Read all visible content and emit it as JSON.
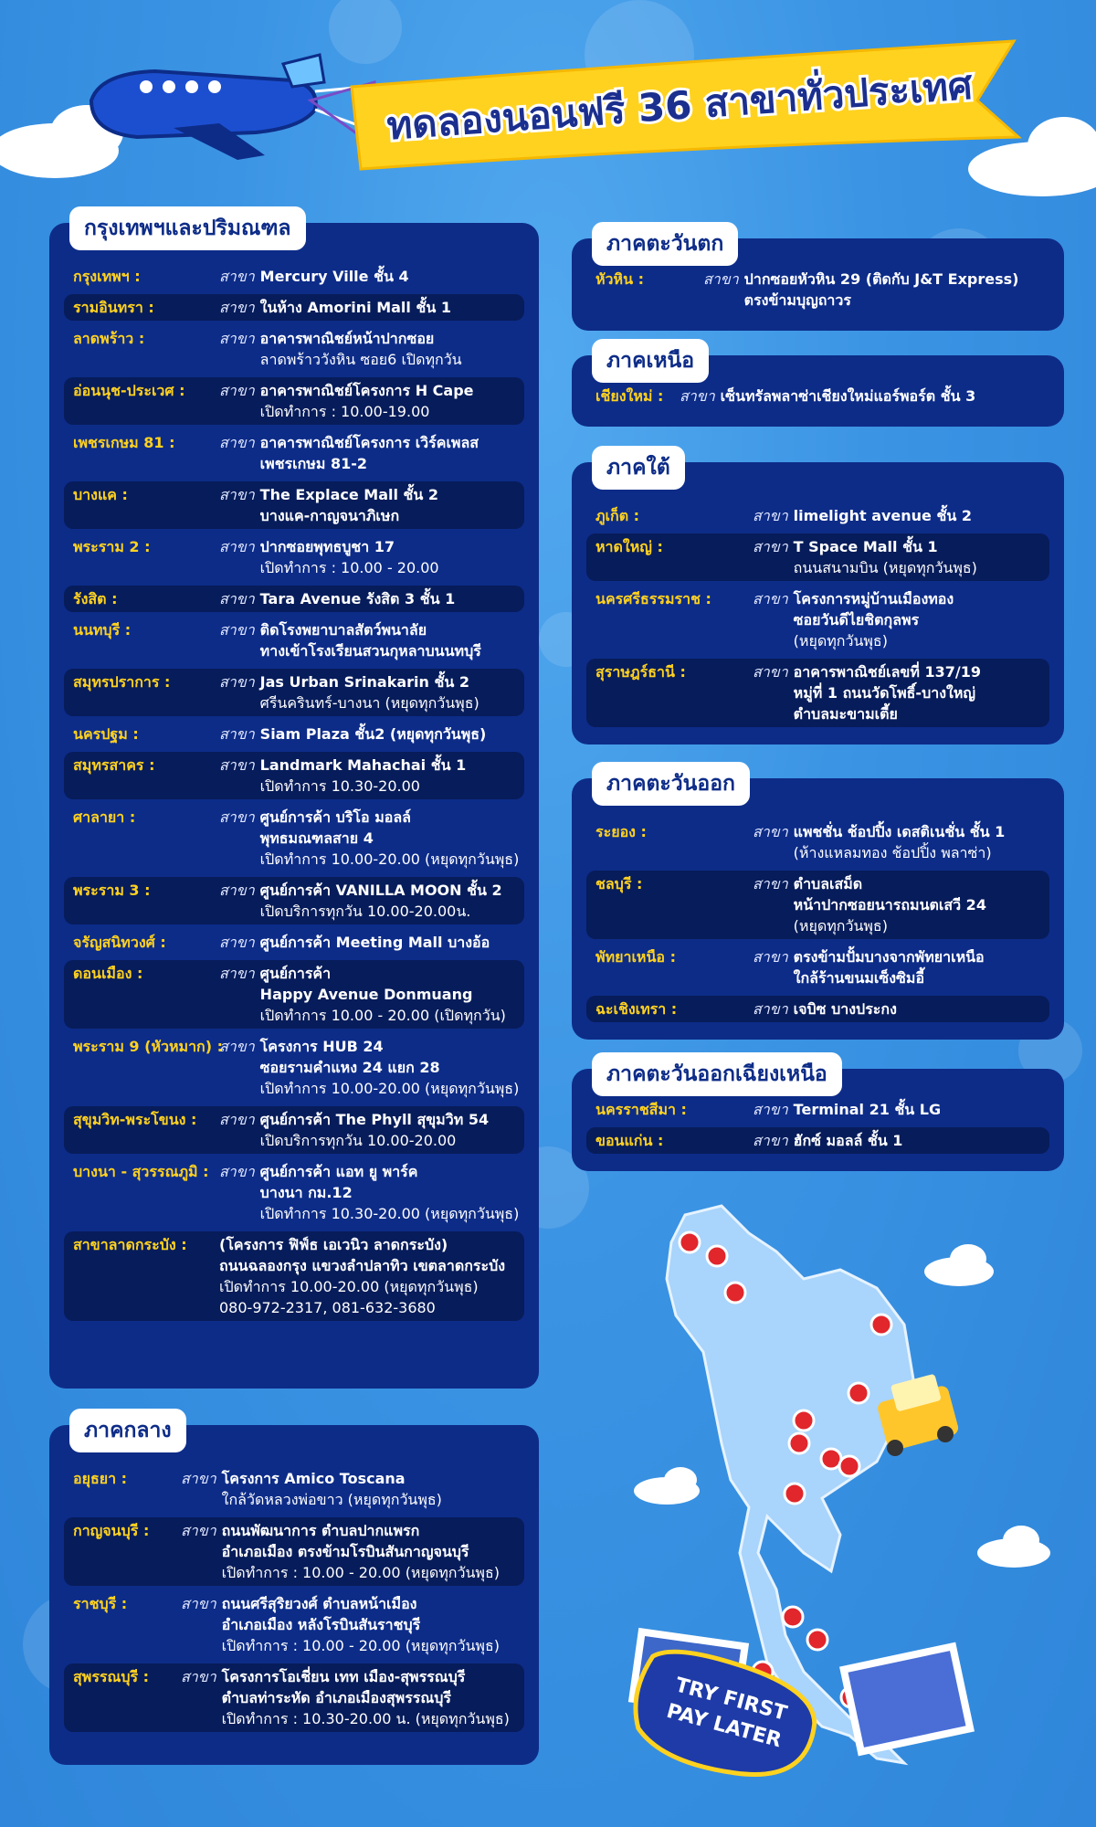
{
  "header": {
    "title": "ทดลองนอนฟรี 36 สาขาทั่วประเทศ"
  },
  "sections": [
    {
      "title": "กรุงเทพฯและปริมณฑล",
      "entries": [
        {
          "place": "กรุงเทพฯ :",
          "prefix": "สาขา",
          "lines": [
            "Mercury Ville ชั้น 4"
          ]
        },
        {
          "place": "รามอินทรา :",
          "prefix": "สาขา",
          "lines": [
            "ในห้าง Amorini Mall ชั้น 1"
          ]
        },
        {
          "place": "ลาดพร้าว :",
          "prefix": "สาขา",
          "lines": [
            "อาคารพาณิชย์หน้าปากซอย",
            "ลาดพร้าววังหิน ซอย6 เปิดทุกวัน"
          ]
        },
        {
          "place": "อ่อนนุช-ประเวศ :",
          "prefix": "สาขา",
          "lines": [
            "อาคารพาณิชย์โครงการ H Cape",
            "เปิดทำการ : 10.00-19.00"
          ]
        },
        {
          "place": "เพชรเกษม 81 :",
          "prefix": "สาขา",
          "lines": [
            "อาคารพาณิชย์โครงการ เวิร์คเพลส",
            "เพชรเกษม 81-2"
          ]
        },
        {
          "place": "บางแค :",
          "prefix": "สาขา",
          "lines": [
            "The Explace Mall ชั้น 2",
            "บางแค-กาญจนาภิเษก"
          ]
        },
        {
          "place": "พระราม 2 :",
          "prefix": "สาขา",
          "lines": [
            "ปากซอยพุทธบูชา 17",
            "เปิดทำการ : 10.00 - 20.00"
          ]
        },
        {
          "place": "รังสิต :",
          "prefix": "สาขา",
          "lines": [
            "Tara Avenue รังสิต 3 ชั้น 1"
          ]
        },
        {
          "place": "นนทบุรี :",
          "prefix": "สาขา",
          "lines": [
            "ติดโรงพยาบาลสัตว์พนาลัย",
            "ทางเข้าโรงเรียนสวนกุหลาบนนทบุรี"
          ]
        },
        {
          "place": "สมุทรปราการ :",
          "prefix": "สาขา",
          "lines": [
            "Jas Urban Srinakarin ชั้น 2",
            "ศรีนครินทร์-บางนา (หยุดทุกวันพุธ)"
          ]
        },
        {
          "place": "นครปฐม :",
          "prefix": "สาขา",
          "lines": [
            "Siam Plaza ชั้น2 (หยุดทุกวันพุธ)"
          ]
        },
        {
          "place": "สมุทรสาคร :",
          "prefix": "สาขา",
          "lines": [
            "Landmark Mahachai ชั้น 1",
            "เปิดทำการ 10.30-20.00"
          ]
        },
        {
          "place": "ศาลายา :",
          "prefix": "สาขา",
          "lines": [
            "ศูนย์การค้า บริโอ มอลล์",
            "พุทธมณฑลสาย 4",
            "เปิดทำการ 10.00-20.00 (หยุดทุกวันพุธ)"
          ]
        },
        {
          "place": "พระราม 3 :",
          "prefix": "สาขา",
          "lines": [
            "ศูนย์การค้า VANILLA MOON ชั้น 2",
            "เปิดบริการทุกวัน 10.00-20.00น."
          ]
        },
        {
          "place": "จรัญสนิทวงศ์ :",
          "prefix": "สาขา",
          "lines": [
            "ศูนย์การค้า Meeting Mall บางอ้อ"
          ]
        },
        {
          "place": "ดอนเมือง :",
          "prefix": "สาขา",
          "lines": [
            "ศูนย์การค้า",
            "Happy Avenue Donmuang",
            "เปิดทำการ 10.00 - 20.00 (เปิดทุกวัน)"
          ]
        },
        {
          "place": "พระราม 9 (หัวหมาก) :",
          "prefix": "สาขา",
          "lines": [
            "โครงการ HUB 24",
            "ซอยรามคำแหง 24 แยก 28",
            "เปิดทำการ 10.00-20.00 (หยุดทุกวันพุธ)"
          ]
        },
        {
          "place": "สุขุมวิท-พระโขนง :",
          "prefix": "สาขา",
          "lines": [
            "ศูนย์การค้า The Phyll สุขุมวิท 54",
            "เปิดบริการทุกวัน 10.00-20.00"
          ]
        },
        {
          "place": "บางนา - สุวรรณภูมิ :",
          "prefix": "สาขา",
          "lines": [
            "ศูนย์การค้า แอท ยู พาร์ค",
            "บางนา กม.12",
            "เปิดทำการ 10.30-20.00 (หยุดทุกวันพุธ)"
          ]
        },
        {
          "place": "สาขาลาดกระบัง :",
          "lines": [
            "(โครงการ ฟิฟ์ธ เอเวนิว ลาดกระบัง)",
            "ถนนฉลองกรุง แขวงลำปลาทิว เขตลาดกระบัง",
            "เปิดทำการ 10.00-20.00 (หยุดทุกวันพุธ)",
            "080-972-2317, 081-632-3680"
          ]
        }
      ]
    },
    {
      "title": "ภาคกลาง",
      "entries": [
        {
          "place": "อยุธยา :",
          "prefix": "สาขา",
          "lines": [
            "โครงการ Amico Toscana",
            "ใกล้วัดหลวงพ่อขาว (หยุดทุกวันพุธ)"
          ]
        },
        {
          "place": "กาญจนบุรี :",
          "prefix": "สาขา",
          "lines": [
            "ถนนพัฒนาการ ตำบลปากแพรก",
            "อำเภอเมือง ตรงข้ามโรบินสันกาญจนบุรี",
            "เปิดทำการ : 10.00 - 20.00 (หยุดทุกวันพุธ)"
          ]
        },
        {
          "place": "ราชบุรี :",
          "prefix": "สาขา",
          "lines": [
            "ถนนศรีสุริยวงศ์ ตำบลหน้าเมือง",
            "อำเภอเมือง หลังโรบินสันราชบุรี",
            "เปิดทำการ : 10.00 - 20.00 (หยุดทุกวันพุธ)"
          ]
        },
        {
          "place": "สุพรรณบุรี :",
          "prefix": "สาขา",
          "lines": [
            "โครงการโอเชี่ยน เทท เมือง-สุพรรณบุรี",
            "ตำบลท่าระหัด อำเภอเมืองสุพรรณบุรี",
            "เปิดทำการ : 10.30-20.00 น. (หยุดทุกวันพุธ)"
          ]
        }
      ]
    },
    {
      "title": "ภาคตะวันตก",
      "entries": [
        {
          "place": "หัวหิน :",
          "prefix": "สาขา",
          "lines": [
            "ปากซอยหัวหิน 29 (ติดกับ J&T Express)",
            "ตรงข้ามบุญถาวร"
          ]
        }
      ]
    },
    {
      "title": "ภาคเหนือ",
      "entries": [
        {
          "place": "เชียงใหม่ :",
          "prefix": "สาขา",
          "lines": [
            "เซ็นทรัลพลาซ่าเชียงใหม่แอร์พอร์ต ชั้น 3"
          ]
        }
      ]
    },
    {
      "title": "ภาคใต้",
      "entries": [
        {
          "place": "ภูเก็ต :",
          "prefix": "สาขา",
          "lines": [
            "limelight avenue ชั้น 2"
          ]
        },
        {
          "place": "หาดใหญ่ :",
          "prefix": "สาขา",
          "lines": [
            "T Space Mall ชั้น 1",
            "ถนนสนามบิน (หยุดทุกวันพุธ)"
          ]
        },
        {
          "place": "นครศรีธรรมราช :",
          "prefix": "สาขา",
          "lines": [
            "โครงการหมู่บ้านเมืองทอง",
            "ซอยวันดีไยชิตกุลพร",
            "(หยุดทุกวันพุธ)"
          ]
        },
        {
          "place": "สุราษฎร์ธานี :",
          "prefix": "สาขา",
          "lines": [
            "อาคารพาณิชย์เลขที่ 137/19",
            "หมู่ที่ 1 ถนนวัดโพธิ์-บางใหญ่",
            "ตำบลมะขามเตี้ย"
          ]
        }
      ]
    },
    {
      "title": "ภาคตะวันออก",
      "entries": [
        {
          "place": "ระยอง :",
          "prefix": "สาขา",
          "lines": [
            "แพชชั่น ช้อปปิ้ง เดสติเนชั่น ชั้น 1",
            "(ห้างแหลมทอง ช้อปปิ้ง พลาซ่า)"
          ]
        },
        {
          "place": "ชลบุรี :",
          "prefix": "สาขา",
          "lines": [
            "ตำบลเสม็ด",
            "หน้าปากซอยนารถมนตเสวี 24",
            "(หยุดทุกวันพุธ)"
          ]
        },
        {
          "place": "พัทยาเหนือ :",
          "prefix": "สาขา",
          "lines": [
            "ตรงข้ามปั้มบางจากพัทยาเหนือ",
            "ใกล้ร้านขนมเซ็งซิมอี้"
          ]
        },
        {
          "place": "ฉะเชิงเทรา :",
          "prefix": "สาขา",
          "lines": [
            "เจบิซ บางประกง"
          ]
        }
      ]
    },
    {
      "title": "ภาคตะวันออกเฉียงเหนือ",
      "entries": [
        {
          "place": "นครราชสีมา :",
          "prefix": "สาขา",
          "lines": [
            "Terminal 21 ชั้น LG"
          ]
        },
        {
          "place": "ขอนแก่น :",
          "prefix": "สาขา",
          "lines": [
            "ฮักซ์ มอลล์ ชั้น 1"
          ]
        }
      ]
    }
  ],
  "badge": {
    "lines": [
      "TRY FIRST",
      "PAY LATER"
    ]
  }
}
